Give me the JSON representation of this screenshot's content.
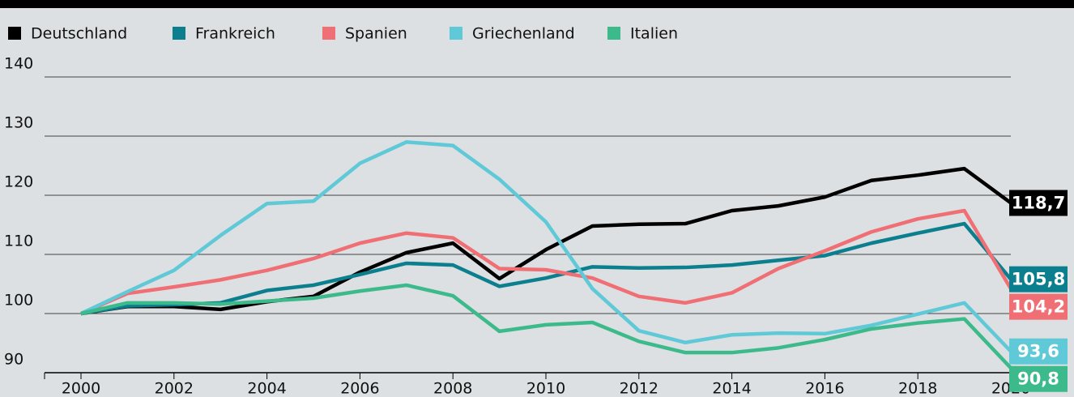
{
  "chart_data": {
    "type": "line",
    "x": [
      2000,
      2001,
      2002,
      2003,
      2004,
      2005,
      2006,
      2007,
      2008,
      2009,
      2010,
      2011,
      2012,
      2013,
      2014,
      2015,
      2016,
      2017,
      2018,
      2019,
      2020
    ],
    "xlim": [
      2000,
      2020
    ],
    "xticks": [
      2000,
      2002,
      2004,
      2006,
      2008,
      2010,
      2012,
      2014,
      2016,
      2018,
      2020
    ],
    "ylim": [
      90,
      140
    ],
    "yticks": [
      90,
      100,
      110,
      120,
      130,
      140
    ],
    "grid": true,
    "series": [
      {
        "name": "Deutschland",
        "color": "#000000",
        "values": [
          100,
          101.2,
          101.2,
          100.7,
          102,
          102.9,
          107,
          110.3,
          111.9,
          105.9,
          110.8,
          114.8,
          115.1,
          115.2,
          117.4,
          118.2,
          119.7,
          122.5,
          123.4,
          124.5,
          118.7
        ],
        "value_labels": [
          null,
          null,
          null,
          null,
          null,
          null,
          null,
          null,
          null,
          null,
          null,
          null,
          null,
          null,
          null,
          null,
          null,
          null,
          null,
          null,
          "118,7"
        ]
      },
      {
        "name": "Frankreich",
        "color": "#0b7f8d",
        "values": [
          100,
          101.3,
          101.5,
          101.8,
          103.9,
          104.8,
          106.6,
          108.5,
          108.2,
          104.6,
          106,
          107.9,
          107.7,
          107.8,
          108.2,
          109,
          109.8,
          111.9,
          113.6,
          115.2,
          105.8
        ],
        "value_labels": [
          null,
          null,
          null,
          null,
          null,
          null,
          null,
          null,
          null,
          null,
          null,
          null,
          null,
          null,
          null,
          null,
          null,
          null,
          null,
          null,
          "105,8"
        ]
      },
      {
        "name": "Spanien",
        "color": "#ef6f74",
        "values": [
          100,
          103.4,
          104.5,
          105.7,
          107.3,
          109.3,
          111.9,
          113.6,
          112.8,
          107.6,
          107.4,
          106,
          102.9,
          101.8,
          103.5,
          107.6,
          110.6,
          113.8,
          116,
          117.4,
          104.2
        ],
        "value_labels": [
          null,
          null,
          null,
          null,
          null,
          null,
          null,
          null,
          null,
          null,
          null,
          null,
          null,
          null,
          null,
          null,
          null,
          null,
          null,
          null,
          "104,2"
        ]
      },
      {
        "name": "Griechenland",
        "color": "#5fc9d7",
        "values": [
          100,
          103.7,
          107.3,
          113.2,
          118.6,
          119,
          125.4,
          129,
          128.4,
          122.7,
          115.5,
          104.2,
          97.1,
          95.1,
          96.4,
          96.7,
          96.6,
          98,
          99.9,
          101.8,
          93.6
        ],
        "value_labels": [
          null,
          null,
          null,
          null,
          null,
          null,
          null,
          null,
          null,
          null,
          null,
          null,
          null,
          null,
          null,
          null,
          null,
          null,
          null,
          null,
          "93,6"
        ]
      },
      {
        "name": "Italien",
        "color": "#3dba8c",
        "values": [
          100,
          101.8,
          101.8,
          101.6,
          102.1,
          102.6,
          103.8,
          104.8,
          103,
          97,
          98.1,
          98.5,
          95.3,
          93.4,
          93.4,
          94.2,
          95.6,
          97.4,
          98.4,
          99.1,
          90.8
        ],
        "value_labels": [
          null,
          null,
          null,
          null,
          null,
          null,
          null,
          null,
          null,
          null,
          null,
          null,
          null,
          null,
          null,
          null,
          null,
          null,
          null,
          null,
          "90,8"
        ]
      }
    ]
  }
}
